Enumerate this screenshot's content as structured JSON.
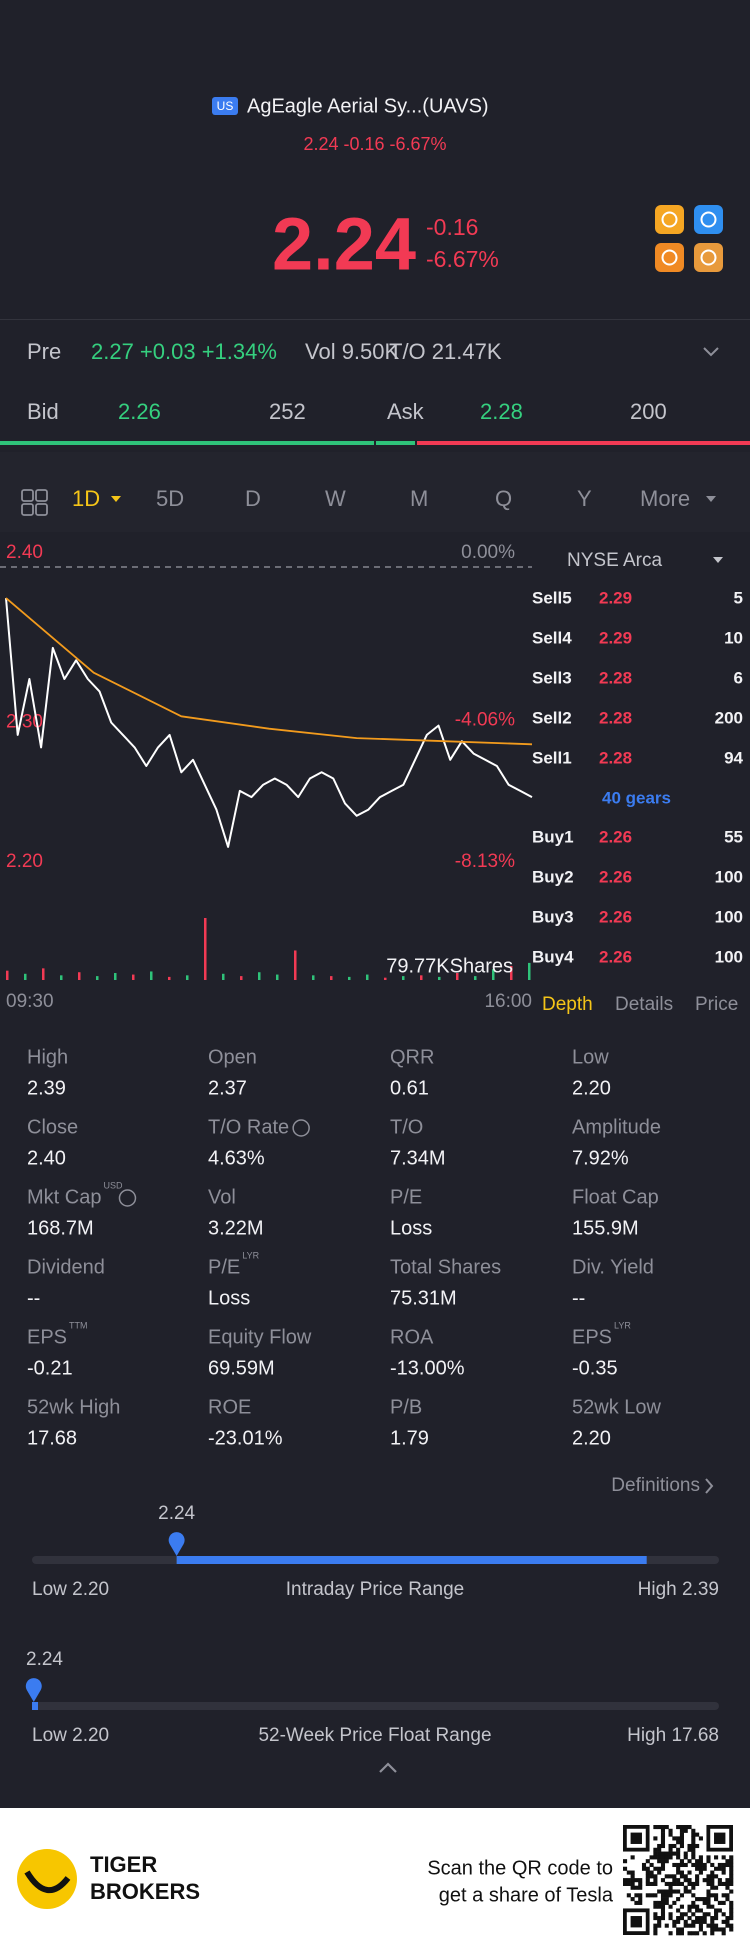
{
  "header": {
    "market_badge": "US",
    "name": "AgEagle Aerial Sy...(UAVS)",
    "summary": "2.24 -0.16 -6.67%"
  },
  "quote": {
    "price": "2.24",
    "change": "-0.16",
    "change_pct": "-6.67%"
  },
  "pre": {
    "label": "Pre",
    "value": "2.27 +0.03 +1.34%",
    "vol": "Vol 9.50K",
    "turnover": "T/O 21.47K"
  },
  "bid_ask": {
    "bid_label": "Bid",
    "bid": "2.26",
    "bid_size": "252",
    "ask_label": "Ask",
    "ask": "2.28",
    "ask_size": "200"
  },
  "tabs": [
    "1D",
    "5D",
    "D",
    "W",
    "M",
    "Q",
    "Y",
    "More"
  ],
  "chart_data": {
    "type": "line",
    "ylim": [
      2.2,
      2.4
    ],
    "yticks": [
      {
        "value": 2.4,
        "label": "2.40"
      },
      {
        "value": 2.3,
        "label": "2.30"
      },
      {
        "value": 2.2,
        "label": "2.20"
      }
    ],
    "y2lim": [
      -8.13,
      0
    ],
    "y2ticks": [
      {
        "value": 0,
        "label": "0.00%"
      },
      {
        "value": -4.06,
        "label": "-4.06%"
      },
      {
        "value": -8.13,
        "label": "-8.13%"
      }
    ],
    "x_labels": [
      "09:30",
      "16:00"
    ],
    "series": [
      {
        "color": "#ffffff",
        "values": [
          2.38,
          2.292,
          2.328,
          2.284,
          2.348,
          2.328,
          2.34,
          2.328,
          2.32,
          2.3,
          2.292,
          2.284,
          2.272,
          2.284,
          2.292,
          2.268,
          2.276,
          2.26,
          2.244,
          2.22,
          2.256,
          2.252,
          2.26,
          2.264,
          2.26,
          2.252,
          2.264,
          2.268,
          2.264,
          2.248,
          2.24,
          2.244,
          2.252,
          2.256,
          2.26,
          2.276,
          2.292,
          2.298,
          2.276,
          2.288,
          2.28,
          2.276,
          2.272,
          2.26,
          2.256,
          2.252
        ]
      },
      {
        "color": "#f29b1d",
        "values": [
          2.38,
          2.332,
          2.304,
          2.296,
          2.29,
          2.288,
          2.286
        ]
      }
    ],
    "volume": {
      "label": "79.77KShares",
      "vlim": [
        0,
        79.77
      ],
      "values": [
        12,
        8,
        15,
        6,
        10,
        5,
        9,
        7,
        11,
        4,
        6,
        79.77,
        8,
        5,
        10,
        7,
        38,
        6,
        5,
        4,
        7,
        3,
        5,
        6,
        4,
        9,
        5,
        14,
        18,
        22
      ],
      "colors": [
        "#f23a54",
        "#2fc37a",
        "#f23a54",
        "#2fc37a",
        "#f23a54",
        "#2fc37a",
        "#2fc37a",
        "#f23a54",
        "#2fc37a",
        "#f23a54",
        "#2fc37a",
        "#f23a54",
        "#2fc37a",
        "#f23a54",
        "#2fc37a",
        "#2fc37a",
        "#f23a54",
        "#2fc37a",
        "#f23a54",
        "#2fc37a",
        "#2fc37a",
        "#f23a54",
        "#2fc37a",
        "#f23a54",
        "#2fc37a",
        "#f23a54",
        "#2fc37a",
        "#2fc37a",
        "#f23a54",
        "#2fc37a"
      ]
    }
  },
  "order_book": {
    "exchange": "NYSE Arca",
    "asks": [
      {
        "label": "Sell5",
        "price": "2.29",
        "size": "5"
      },
      {
        "label": "Sell4",
        "price": "2.29",
        "size": "10"
      },
      {
        "label": "Sell3",
        "price": "2.28",
        "size": "6"
      },
      {
        "label": "Sell2",
        "price": "2.28",
        "size": "200"
      },
      {
        "label": "Sell1",
        "price": "2.28",
        "size": "94"
      }
    ],
    "gears": "40 gears",
    "bids": [
      {
        "label": "Buy1",
        "price": "2.26",
        "size": "55"
      },
      {
        "label": "Buy2",
        "price": "2.26",
        "size": "100"
      },
      {
        "label": "Buy3",
        "price": "2.26",
        "size": "100"
      },
      {
        "label": "Buy4",
        "price": "2.26",
        "size": "100"
      }
    ],
    "panel_tabs": [
      "Depth",
      "Details",
      "Price"
    ]
  },
  "stats": [
    {
      "label": "High",
      "value": "2.39"
    },
    {
      "label": "Open",
      "value": "2.37"
    },
    {
      "label": "QRR",
      "value": "0.61"
    },
    {
      "label": "Low",
      "value": "2.20"
    },
    {
      "label": "Close",
      "value": "2.40"
    },
    {
      "label": "T/O Rate",
      "value": "4.63%",
      "info": true
    },
    {
      "label": "T/O",
      "value": "7.34M"
    },
    {
      "label": "Amplitude",
      "value": "7.92%"
    },
    {
      "label": "Mkt Cap",
      "sup": "USD",
      "info": true,
      "value": "168.7M"
    },
    {
      "label": "Vol",
      "value": "3.22M"
    },
    {
      "label": "P/E",
      "value": "Loss"
    },
    {
      "label": "Float Cap",
      "value": "155.9M"
    },
    {
      "label": "Dividend",
      "value": "--"
    },
    {
      "label": "P/E",
      "sup": "LYR",
      "value": "Loss"
    },
    {
      "label": "Total Shares",
      "value": "75.31M"
    },
    {
      "label": "Div. Yield",
      "value": "--"
    },
    {
      "label": "EPS",
      "sup": "TTM",
      "value": "-0.21"
    },
    {
      "label": "Equity Flow",
      "value": "69.59M"
    },
    {
      "label": "ROA",
      "value": "-13.00%"
    },
    {
      "label": "EPS",
      "sup": "LYR",
      "value": "-0.35"
    },
    {
      "label": "52wk High",
      "value": "17.68"
    },
    {
      "label": "ROE",
      "value": "-23.01%"
    },
    {
      "label": "P/B",
      "value": "1.79"
    },
    {
      "label": "52wk Low",
      "value": "2.20"
    }
  ],
  "definitions": "Definitions",
  "ranges": [
    {
      "current_label": "2.24",
      "value": 2.24,
      "min": 2.2,
      "max": 2.39,
      "fill": [
        2.24,
        2.37
      ],
      "low": "Low 2.20",
      "title": "Intraday Price Range",
      "high": "High 2.39"
    },
    {
      "current_label": "2.24",
      "value": 2.24,
      "min": 2.2,
      "max": 17.68,
      "fill": [
        2.2,
        2.24
      ],
      "low": "Low 2.20",
      "title": "52-Week Price Float Range",
      "high": "High 17.68"
    }
  ],
  "footer": {
    "brand": [
      "TIGER",
      "BROKERS"
    ],
    "cta": [
      "Scan the QR code to",
      "get a share of Tesla"
    ]
  }
}
